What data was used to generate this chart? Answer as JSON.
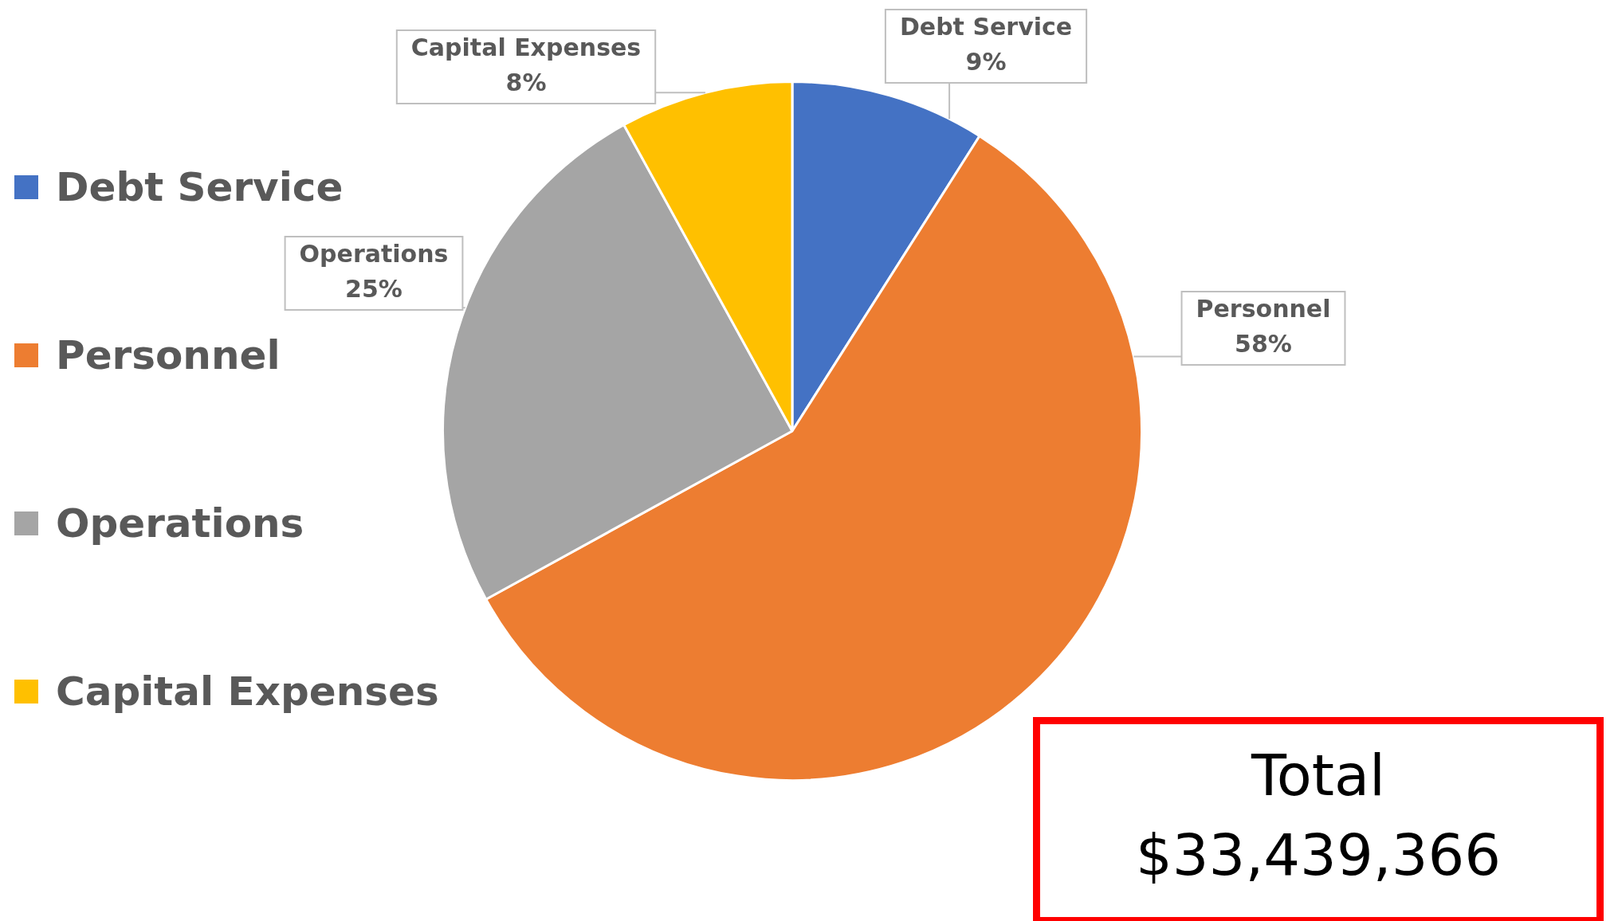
{
  "chart_data": {
    "type": "pie",
    "categories": [
      "Debt Service",
      "Personnel",
      "Operations",
      "Capital Expenses"
    ],
    "values": [
      9,
      58,
      25,
      8
    ],
    "colors": [
      "#4472c4",
      "#ed7d31",
      "#a5a5a5",
      "#ffc000"
    ],
    "value_labels": [
      "9%",
      "58%",
      "25%",
      "8%"
    ],
    "legend": "left",
    "annotations": [
      "Total $33,439,366"
    ]
  }
}
